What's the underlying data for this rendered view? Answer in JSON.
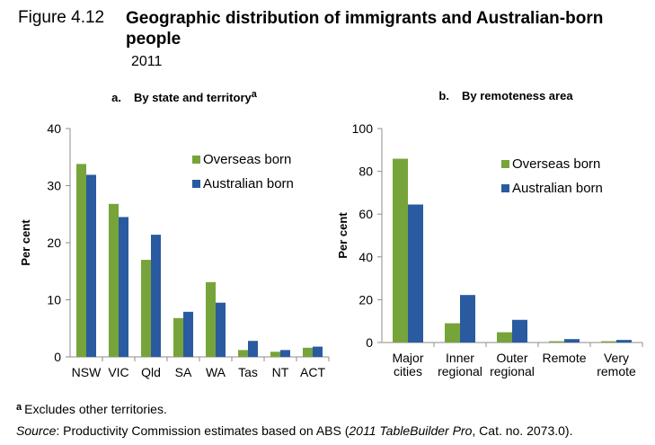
{
  "header": {
    "figure_label": "Figure 4.12",
    "title": "Geographic distribution of immigrants and Australian-born people",
    "year": "2011"
  },
  "colors": {
    "overseas": "#77a43a",
    "australian": "#2a5aa0",
    "axis": "#8c8c8c"
  },
  "chart_data": [
    {
      "type": "bar",
      "panel_label": "a.",
      "title": "By state and territory",
      "title_sup": "a",
      "ylabel": "Per cent",
      "xlabel": "",
      "ylim": [
        0,
        40
      ],
      "yticks": [
        "0",
        "10",
        "20",
        "30",
        "40"
      ],
      "categories": [
        "NSW",
        "VIC",
        "Qld",
        "SA",
        "WA",
        "Tas",
        "NT",
        "ACT"
      ],
      "series": [
        {
          "name": "Overseas born",
          "values": [
            33.8,
            26.8,
            17.0,
            6.8,
            13.1,
            1.2,
            0.9,
            1.6
          ]
        },
        {
          "name": "Australian born",
          "values": [
            31.9,
            24.5,
            21.4,
            7.9,
            9.5,
            2.8,
            1.2,
            1.8
          ]
        }
      ],
      "legend": "top-right",
      "grid": false
    },
    {
      "type": "bar",
      "panel_label": "b.",
      "title": "By remoteness area",
      "ylabel": "Per cent",
      "xlabel": "",
      "ylim": [
        0,
        100
      ],
      "yticks": [
        "0",
        "20",
        "40",
        "60",
        "80",
        "100"
      ],
      "categories": [
        [
          "Major",
          "cities"
        ],
        [
          "Inner",
          "regional"
        ],
        [
          "Outer",
          "regional"
        ],
        [
          "Remote"
        ],
        [
          "Very",
          "remote"
        ]
      ],
      "series": [
        {
          "name": "Overseas born",
          "values": [
            85.9,
            9.0,
            4.8,
            0.6,
            0.6
          ]
        },
        {
          "name": "Australian born",
          "values": [
            64.5,
            22.2,
            10.6,
            1.6,
            1.2
          ]
        }
      ],
      "legend": "top-right",
      "grid": false
    }
  ],
  "footnote": {
    "marker": "a",
    "text": "Excludes other territories."
  },
  "source": {
    "label": "Source",
    "pre": ": Productivity Commission estimates based on ABS (",
    "italic": "2011 TableBuilder Pro",
    "post": ", Cat. no. 2073.0)."
  }
}
